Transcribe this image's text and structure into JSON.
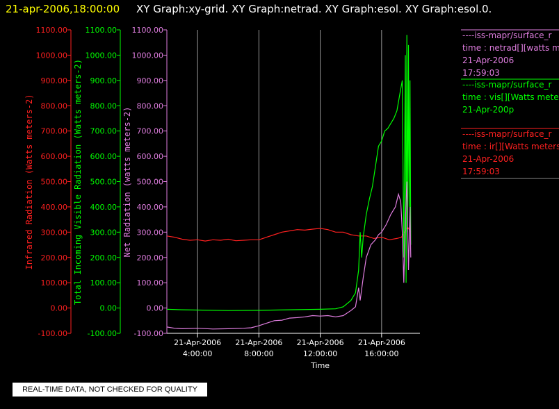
{
  "header": {
    "timestamp": "21-apr-2006,18:00:00",
    "titles": "XY Graph:xy-grid.  XY Graph:netrad.  XY Graph:esol.  XY Graph:esol.0."
  },
  "disclaimer": "REAL-TIME DATA, NOT CHECKED FOR QUALITY",
  "legend": [
    {
      "lines": [
        "----iss-mapr/surface_r",
        "time : netrad[][watts me",
        "21-Apr-2006",
        "17:59:03"
      ],
      "color": "#e07ee0"
    },
    {
      "lines": [
        "----iss-mapr/surface_r",
        "time : vis[][Watts mete",
        "21-Apr-200p"
      ],
      "color": "#00ff00"
    },
    {
      "lines": [
        "----iss-mapr/surface_r",
        "time : ir[][Watts meters",
        "21-Apr-2006",
        "17:59:03"
      ],
      "color": "#ff2020"
    }
  ],
  "chart_data": {
    "type": "line",
    "xlabel": "Time",
    "x_ticks": [
      {
        "hours": 4,
        "line1": "21-Apr-2006",
        "line2": "4:00:00"
      },
      {
        "hours": 8,
        "line1": "21-Apr-2006",
        "line2": "8:00:00"
      },
      {
        "hours": 12,
        "line1": "21-Apr-2006",
        "line2": "12:00:00"
      },
      {
        "hours": 16,
        "line1": "21-Apr-2006",
        "line2": "16:00:00"
      }
    ],
    "xlim": [
      2.0,
      18.5
    ],
    "ylim": [
      -100,
      1100
    ],
    "grid_vertical": true,
    "y_ticks": [
      "-100.00",
      "0.00",
      "100.00",
      "200.00",
      "300.00",
      "400.00",
      "500.00",
      "600.00",
      "700.00",
      "800.00",
      "900.00",
      "1000.00",
      "1100.00"
    ],
    "axes": [
      {
        "label": "Infrared Radiation (Watts meters-2)",
        "color": "#ff2020"
      },
      {
        "label": "Total Incoming Visible Radiation (Watts meters-2)",
        "color": "#00ff00"
      },
      {
        "label": "Net Radiation (watts meters-2)",
        "color": "#e07ee0"
      }
    ],
    "series": [
      {
        "name": "ir",
        "color": "#ff2020",
        "points": [
          [
            2.0,
            285
          ],
          [
            2.5,
            280
          ],
          [
            3.0,
            272
          ],
          [
            3.5,
            268
          ],
          [
            4.0,
            270
          ],
          [
            4.5,
            265
          ],
          [
            5.0,
            270
          ],
          [
            5.5,
            268
          ],
          [
            6.0,
            272
          ],
          [
            6.5,
            266
          ],
          [
            7.0,
            268
          ],
          [
            7.5,
            270
          ],
          [
            8.0,
            270
          ],
          [
            8.5,
            280
          ],
          [
            9.0,
            290
          ],
          [
            9.5,
            300
          ],
          [
            10.0,
            305
          ],
          [
            10.5,
            310
          ],
          [
            11.0,
            308
          ],
          [
            11.5,
            312
          ],
          [
            12.0,
            315
          ],
          [
            12.5,
            310
          ],
          [
            13.0,
            300
          ],
          [
            13.5,
            300
          ],
          [
            14.0,
            290
          ],
          [
            14.5,
            285
          ],
          [
            15.0,
            285
          ],
          [
            15.5,
            275
          ],
          [
            16.0,
            280
          ],
          [
            16.5,
            270
          ],
          [
            17.0,
            275
          ],
          [
            17.3,
            280
          ],
          [
            17.5,
            300
          ],
          [
            17.7,
            320
          ],
          [
            17.9,
            300
          ]
        ]
      },
      {
        "name": "vis",
        "color": "#00ff00",
        "points": [
          [
            2.0,
            -5
          ],
          [
            3.0,
            -7
          ],
          [
            4.0,
            -8
          ],
          [
            6.0,
            -10
          ],
          [
            8.0,
            -9
          ],
          [
            10.0,
            -7
          ],
          [
            12.0,
            -5
          ],
          [
            13.0,
            -3
          ],
          [
            13.5,
            5
          ],
          [
            14.0,
            30
          ],
          [
            14.3,
            60
          ],
          [
            14.5,
            150
          ],
          [
            14.6,
            300
          ],
          [
            14.7,
            200
          ],
          [
            14.8,
            280
          ],
          [
            15.0,
            370
          ],
          [
            15.2,
            430
          ],
          [
            15.4,
            480
          ],
          [
            15.6,
            560
          ],
          [
            15.8,
            640
          ],
          [
            16.0,
            660
          ],
          [
            16.2,
            700
          ],
          [
            16.4,
            710
          ],
          [
            16.6,
            730
          ],
          [
            16.8,
            750
          ],
          [
            17.0,
            780
          ],
          [
            17.2,
            850
          ],
          [
            17.35,
            900
          ],
          [
            17.45,
            200
          ],
          [
            17.55,
            1000
          ],
          [
            17.6,
            100
          ],
          [
            17.65,
            1080
          ],
          [
            17.7,
            300
          ],
          [
            17.75,
            1040
          ],
          [
            17.8,
            400
          ],
          [
            17.85,
            900
          ],
          [
            17.9,
            250
          ]
        ]
      },
      {
        "name": "netrad",
        "color": "#e07ee0",
        "points": [
          [
            2.0,
            -75
          ],
          [
            2.5,
            -80
          ],
          [
            3.0,
            -82
          ],
          [
            4.0,
            -80
          ],
          [
            5.0,
            -83
          ],
          [
            6.0,
            -82
          ],
          [
            7.0,
            -80
          ],
          [
            7.5,
            -78
          ],
          [
            8.0,
            -70
          ],
          [
            8.5,
            -60
          ],
          [
            9.0,
            -50
          ],
          [
            9.5,
            -48
          ],
          [
            10.0,
            -40
          ],
          [
            10.5,
            -38
          ],
          [
            11.0,
            -35
          ],
          [
            11.5,
            -30
          ],
          [
            12.0,
            -32
          ],
          [
            12.5,
            -30
          ],
          [
            13.0,
            -35
          ],
          [
            13.5,
            -30
          ],
          [
            14.0,
            -10
          ],
          [
            14.3,
            5
          ],
          [
            14.5,
            80
          ],
          [
            14.6,
            30
          ],
          [
            14.8,
            120
          ],
          [
            15.0,
            200
          ],
          [
            15.3,
            250
          ],
          [
            15.6,
            270
          ],
          [
            15.8,
            290
          ],
          [
            16.0,
            300
          ],
          [
            16.3,
            330
          ],
          [
            16.6,
            370
          ],
          [
            16.9,
            400
          ],
          [
            17.1,
            450
          ],
          [
            17.25,
            420
          ],
          [
            17.35,
            300
          ],
          [
            17.45,
            100
          ],
          [
            17.55,
            350
          ],
          [
            17.65,
            500
          ],
          [
            17.75,
            150
          ],
          [
            17.85,
            400
          ],
          [
            17.9,
            200
          ]
        ]
      }
    ]
  }
}
